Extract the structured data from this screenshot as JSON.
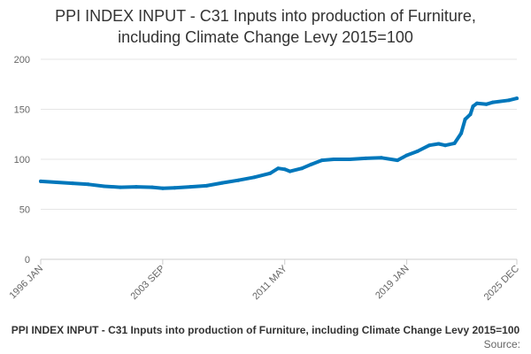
{
  "chart_data": {
    "type": "line",
    "title_line1": "PPI INDEX INPUT - C31 Inputs into production of Furniture,",
    "title_line2": "including Climate Change Levy 2015=100",
    "ylim": [
      0,
      200
    ],
    "yticks": [
      "0",
      "50",
      "100",
      "150",
      "200"
    ],
    "xticks": [
      "1996 JAN",
      "2003 SEP",
      "2011 MAY",
      "2019 JAN",
      "2025 DEC"
    ],
    "legend": "PPI INDEX INPUT - C31 Inputs into production of Furniture, including Climate Change Levy 2015=100",
    "source_label": "Source:",
    "series": [
      {
        "color": "#0077bb",
        "points": [
          [
            "1996-01",
            78
          ],
          [
            "1997-01",
            77
          ],
          [
            "1998-01",
            76
          ],
          [
            "1999-01",
            75
          ],
          [
            "2000-01",
            73
          ],
          [
            "2001-01",
            72
          ],
          [
            "2002-01",
            72.5
          ],
          [
            "2003-01",
            72
          ],
          [
            "2003-09",
            71
          ],
          [
            "2004-06",
            71.5
          ],
          [
            "2005-06",
            72.5
          ],
          [
            "2006-06",
            73.5
          ],
          [
            "2007-06",
            76.5
          ],
          [
            "2008-06",
            79
          ],
          [
            "2009-06",
            82
          ],
          [
            "2010-06",
            86
          ],
          [
            "2010-12",
            91
          ],
          [
            "2011-05",
            90
          ],
          [
            "2011-09",
            88
          ],
          [
            "2012-06",
            91
          ],
          [
            "2013-01",
            95
          ],
          [
            "2013-09",
            99
          ],
          [
            "2014-06",
            100
          ],
          [
            "2015-06",
            100
          ],
          [
            "2016-06",
            101
          ],
          [
            "2017-06",
            101.5
          ],
          [
            "2018-06",
            99
          ],
          [
            "2019-01",
            104
          ],
          [
            "2019-09",
            108
          ],
          [
            "2020-06",
            114
          ],
          [
            "2021-01",
            115.5
          ],
          [
            "2021-06",
            114
          ],
          [
            "2022-01",
            116
          ],
          [
            "2022-06",
            126
          ],
          [
            "2022-09",
            140
          ],
          [
            "2023-01",
            145
          ],
          [
            "2023-03",
            153
          ],
          [
            "2023-06",
            156
          ],
          [
            "2024-01",
            155
          ],
          [
            "2024-06",
            157
          ],
          [
            "2025-06",
            159
          ],
          [
            "2025-12",
            161
          ]
        ]
      }
    ]
  }
}
